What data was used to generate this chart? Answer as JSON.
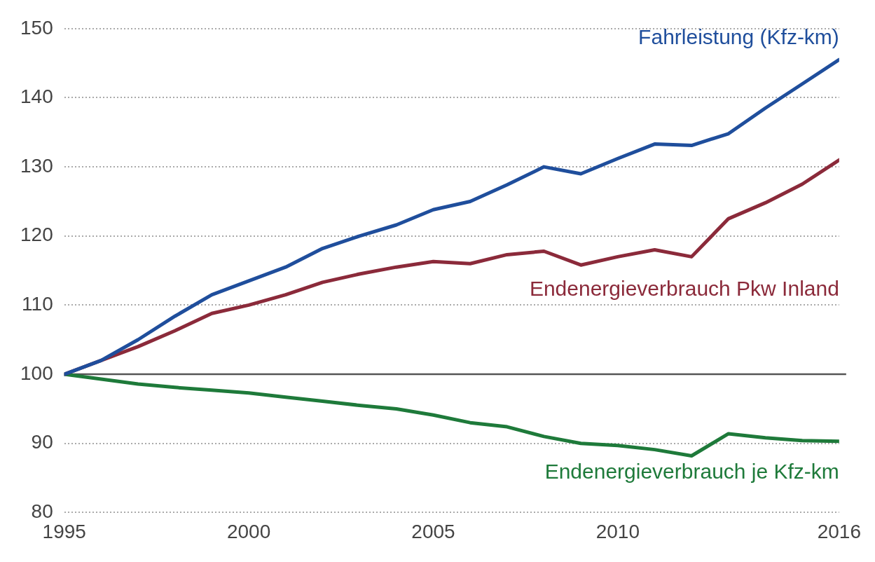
{
  "chart_data": {
    "type": "line",
    "x": [
      1995,
      1996,
      1997,
      1998,
      1999,
      2000,
      2001,
      2002,
      2003,
      2004,
      2005,
      2006,
      2007,
      2008,
      2009,
      2010,
      2011,
      2012,
      2013,
      2014,
      2015,
      2016
    ],
    "series": [
      {
        "name": "Fahrleistung (Kfz-km)",
        "color": "#1f4e9c",
        "values": [
          100,
          102,
          105,
          108.4,
          111.5,
          113.5,
          115.5,
          118.2,
          120,
          121.6,
          123.8,
          125,
          127.4,
          130,
          129,
          131.2,
          133.3,
          133.1,
          134.8,
          138.5,
          142,
          145.5
        ]
      },
      {
        "name": "Endenergieverbrauch Pkw Inland",
        "color": "#8b2a3a",
        "values": [
          100,
          102,
          104,
          106.3,
          108.8,
          110,
          111.5,
          113.3,
          114.5,
          115.5,
          116.3,
          116,
          117.3,
          117.8,
          115.8,
          117,
          118,
          117,
          122.5,
          124.8,
          127.5,
          131
        ]
      },
      {
        "name": "Endenergieverbrauch je Kfz-km",
        "color": "#1e7a3a",
        "values": [
          100,
          99.3,
          98.6,
          98.1,
          97.7,
          97.3,
          96.7,
          96.1,
          95.5,
          95,
          94.1,
          93,
          92.4,
          91,
          90,
          89.7,
          89.1,
          88.2,
          91.4,
          90.8,
          90.4,
          90.3
        ]
      }
    ],
    "xlim": [
      1995,
      2016
    ],
    "xticks": [
      1995,
      2000,
      2005,
      2010,
      2016
    ],
    "ylim": [
      80,
      150
    ],
    "yticks": [
      80,
      90,
      100,
      110,
      120,
      130,
      140,
      150
    ],
    "grid": "y",
    "legend": false,
    "marker": "none",
    "line_style": "solid",
    "ref_lines": [
      {
        "axis": "y",
        "value": 100,
        "color": "#555555"
      }
    ]
  }
}
